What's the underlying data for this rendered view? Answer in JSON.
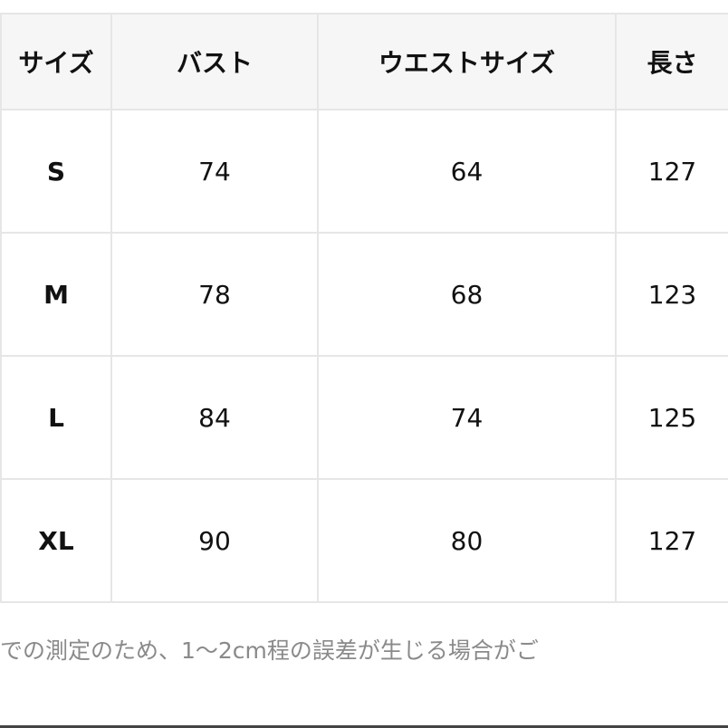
{
  "table": {
    "headers": [
      "サイズ",
      "バスト",
      "ウエストサイズ",
      "長さ"
    ],
    "rows": [
      {
        "size": "S",
        "bust": "74",
        "waist": "64",
        "length": "127"
      },
      {
        "size": "M",
        "bust": "78",
        "waist": "68",
        "length": "123"
      },
      {
        "size": "L",
        "bust": "84",
        "waist": "74",
        "length": "125"
      },
      {
        "size": "XL",
        "bust": "90",
        "waist": "80",
        "length": "127"
      }
    ]
  },
  "note": "での測定のため、1〜2cm程の誤差が生じる場合がご"
}
